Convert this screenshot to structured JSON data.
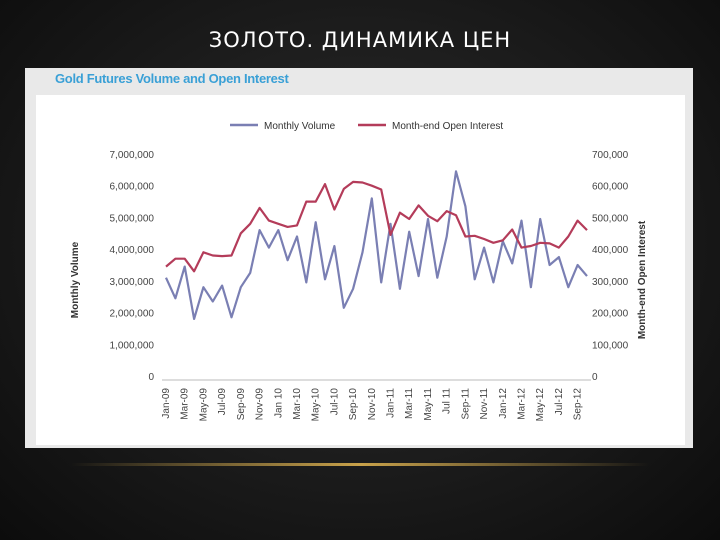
{
  "slide": {
    "title": "ЗОЛОТО. ДИНАМИКА ЦЕН"
  },
  "colors": {
    "volume": "#7a7fb3",
    "open_interest": "#b43c5a",
    "title": "#3aa0d6"
  },
  "chart_data": {
    "type": "line",
    "title": "Gold Futures Volume and Open Interest",
    "ylabel": "Monthly Volume",
    "ylabel_right": "Month-end Open Interest",
    "ylim": [
      0,
      7000000
    ],
    "ylim_right": [
      0,
      700000
    ],
    "yticks": [
      "0",
      "1,000,000",
      "2,000,000",
      "3,000,000",
      "4,000,000",
      "5,000,000",
      "6,000,000",
      "7,000,000"
    ],
    "yticks_right": [
      "0",
      "100,000",
      "200,000",
      "300,000",
      "400,000",
      "500,000",
      "600,000",
      "700,000"
    ],
    "legend_position": "top",
    "x": [
      "Jan-09",
      "Feb-09",
      "Mar-09",
      "Apr-09",
      "May-09",
      "Jun-09",
      "Jul-09",
      "Aug-09",
      "Sep-09",
      "Oct-09",
      "Nov-09",
      "Dec-09",
      "Jan-10",
      "Feb-10",
      "Mar-10",
      "Apr-10",
      "May-10",
      "Jun-10",
      "Jul-10",
      "Aug-10",
      "Sep-10",
      "Oct-10",
      "Nov-10",
      "Dec-10",
      "Jan-11",
      "Feb-11",
      "Mar-11",
      "Apr-11",
      "May-11",
      "Jun-11",
      "Jul-11",
      "Aug-11",
      "Sep-11",
      "Oct-11",
      "Nov-11",
      "Dec-11",
      "Jan-12",
      "Feb-12",
      "Mar-12",
      "Apr-12",
      "May-12",
      "Jun-12",
      "Jul-12",
      "Aug-12",
      "Sep-12",
      "Oct-12"
    ],
    "x_tick_labels": [
      "Jan-09",
      "Mar-09",
      "May-09",
      "Jul-09",
      "Sep-09",
      "Nov-09",
      "Jan 10",
      "Mar-10",
      "May-10",
      "Jul-10",
      "Sep-10",
      "Nov-10",
      "Jan-11",
      "Mar-11",
      "May-11",
      "Jul 11",
      "Sep-11",
      "Nov-11",
      "Jan-12",
      "Mar-12",
      "May-12",
      "Jul-12",
      "Sep-12"
    ],
    "series": [
      {
        "name": "Monthly Volume",
        "axis": "left",
        "values": [
          3100000,
          2450000,
          3450000,
          1800000,
          2800000,
          2350000,
          2850000,
          1850000,
          2800000,
          3250000,
          4600000,
          4050000,
          4600000,
          3650000,
          4400000,
          2950000,
          4850000,
          3050000,
          4100000,
          2150000,
          2750000,
          3900000,
          5600000,
          2950000,
          4800000,
          2750000,
          4550000,
          3150000,
          4950000,
          3100000,
          4400000,
          6450000,
          5350000,
          3050000,
          4050000,
          2950000,
          4250000,
          3550000,
          4900000,
          2800000,
          4950000,
          3500000,
          3750000,
          2800000,
          3500000,
          3150000
        ]
      },
      {
        "name": "Month-end Open Interest",
        "axis": "right",
        "values": [
          345000,
          370000,
          370000,
          330000,
          390000,
          380000,
          378000,
          380000,
          450000,
          480000,
          530000,
          490000,
          480000,
          470000,
          475000,
          550000,
          550000,
          605000,
          525000,
          590000,
          612000,
          610000,
          600000,
          588000,
          445000,
          515000,
          495000,
          538000,
          505000,
          488000,
          520000,
          507000,
          440000,
          442000,
          432000,
          420000,
          428000,
          462000,
          405000,
          410000,
          420000,
          418000,
          405000,
          440000,
          490000,
          460000
        ]
      }
    ]
  }
}
